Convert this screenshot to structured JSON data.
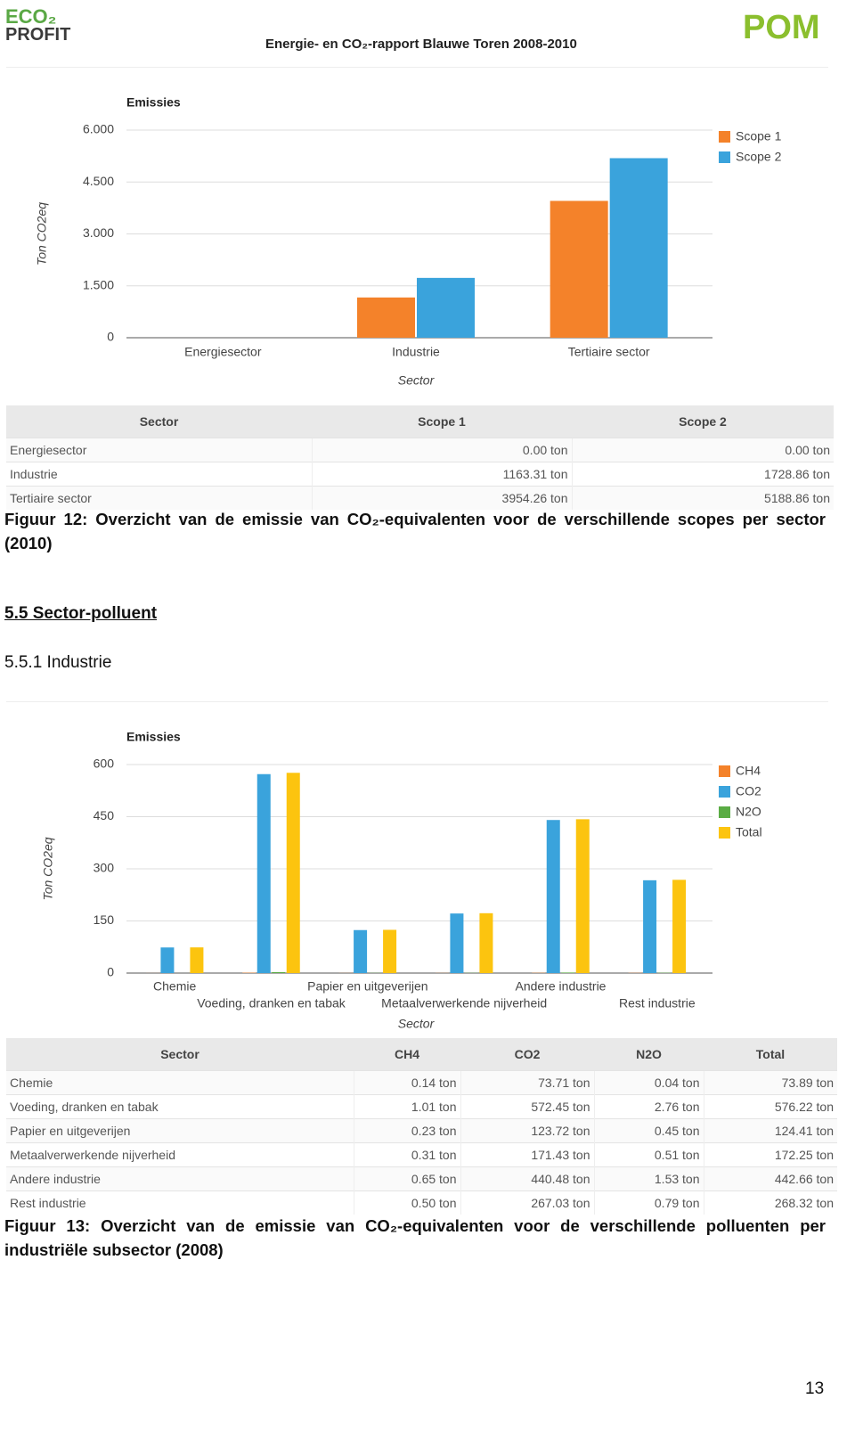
{
  "header": {
    "logo_left_top": "ECO₂",
    "logo_left_bottom": "PROFIT",
    "logo_right": "POM",
    "title": "Energie- en CO₂-rapport Blauwe Toren 2008-2010"
  },
  "chart_data": [
    {
      "type": "bar",
      "title": "Emissies",
      "y_label": "Ton CO2eq",
      "x_label": "Sector",
      "categories": [
        "Energiesector",
        "Industrie",
        "Tertiaire sector"
      ],
      "series": [
        {
          "name": "Scope 1",
          "color": "#f4822a",
          "values": [
            0,
            1163.31,
            3954.26
          ]
        },
        {
          "name": "Scope 2",
          "color": "#3aa3dc",
          "values": [
            0,
            1728.86,
            5188.86
          ]
        }
      ],
      "ylim": [
        0,
        6000
      ],
      "yticks": [
        0,
        {
          "value": 1500,
          "label": "1.500"
        },
        {
          "value": 3000,
          "label": "3.000"
        },
        {
          "value": 4500,
          "label": "4.500"
        },
        {
          "value": 6000,
          "label": "6.000"
        }
      ],
      "grid": true,
      "legend": "top-right"
    },
    {
      "type": "bar",
      "title": "Emissies",
      "y_label": "Ton CO2eq",
      "x_label": "Sector",
      "categories": [
        "Chemie",
        "Voeding, dranken en tabak",
        "Papier en uitgeverijen",
        "Metaalverwerkende nijverheid",
        "Andere industrie",
        "Rest industrie"
      ],
      "series": [
        {
          "name": "CH4",
          "color": "#f4822a",
          "values": [
            0.14,
            1.01,
            0.23,
            0.31,
            0.65,
            0.5
          ]
        },
        {
          "name": "CO2",
          "color": "#3aa3dc",
          "values": [
            73.71,
            572.45,
            123.72,
            171.43,
            440.48,
            267.03
          ]
        },
        {
          "name": "N2O",
          "color": "#5aac44",
          "values": [
            0.04,
            2.76,
            0.45,
            0.51,
            1.53,
            0.79
          ]
        },
        {
          "name": "Total",
          "color": "#fcc40f",
          "values": [
            73.89,
            576.22,
            124.41,
            172.25,
            442.66,
            268.32
          ]
        }
      ],
      "ylim": [
        0,
        600
      ],
      "yticks": [
        0,
        150,
        300,
        450,
        600
      ],
      "grid": true,
      "legend": "top-right"
    }
  ],
  "tables": [
    {
      "columns": [
        "Sector",
        "Scope 1",
        "Scope 2"
      ],
      "rows": [
        [
          "Energiesector",
          "0.00 ton",
          "0.00 ton"
        ],
        [
          "Industrie",
          "1163.31 ton",
          "1728.86 ton"
        ],
        [
          "Tertiaire sector",
          "3954.26 ton",
          "5188.86 ton"
        ]
      ]
    },
    {
      "columns": [
        "Sector",
        "CH4",
        "CO2",
        "N2O",
        "Total"
      ],
      "rows": [
        [
          "Chemie",
          "0.14 ton",
          "73.71 ton",
          "0.04 ton",
          "73.89 ton"
        ],
        [
          "Voeding, dranken en tabak",
          "1.01 ton",
          "572.45 ton",
          "2.76 ton",
          "576.22 ton"
        ],
        [
          "Papier en uitgeverijen",
          "0.23 ton",
          "123.72 ton",
          "0.45 ton",
          "124.41 ton"
        ],
        [
          "Metaalverwerkende nijverheid",
          "0.31 ton",
          "171.43 ton",
          "0.51 ton",
          "172.25 ton"
        ],
        [
          "Andere industrie",
          "0.65 ton",
          "440.48 ton",
          "1.53 ton",
          "442.66 ton"
        ],
        [
          "Rest industrie",
          "0.50 ton",
          "267.03 ton",
          "0.79 ton",
          "268.32 ton"
        ]
      ]
    }
  ],
  "captions": [
    "Figuur 12: Overzicht van de emissie van CO₂-equivalenten voor de verschillende scopes per sector (2010)",
    "Figuur 13: Overzicht van de emissie van CO₂-equivalenten voor de verschillende polluenten per industriële subsector (2008)"
  ],
  "section_heading": "5.5 Sector-polluent",
  "subsection_heading": "5.5.1 Industrie",
  "page_number": "13"
}
